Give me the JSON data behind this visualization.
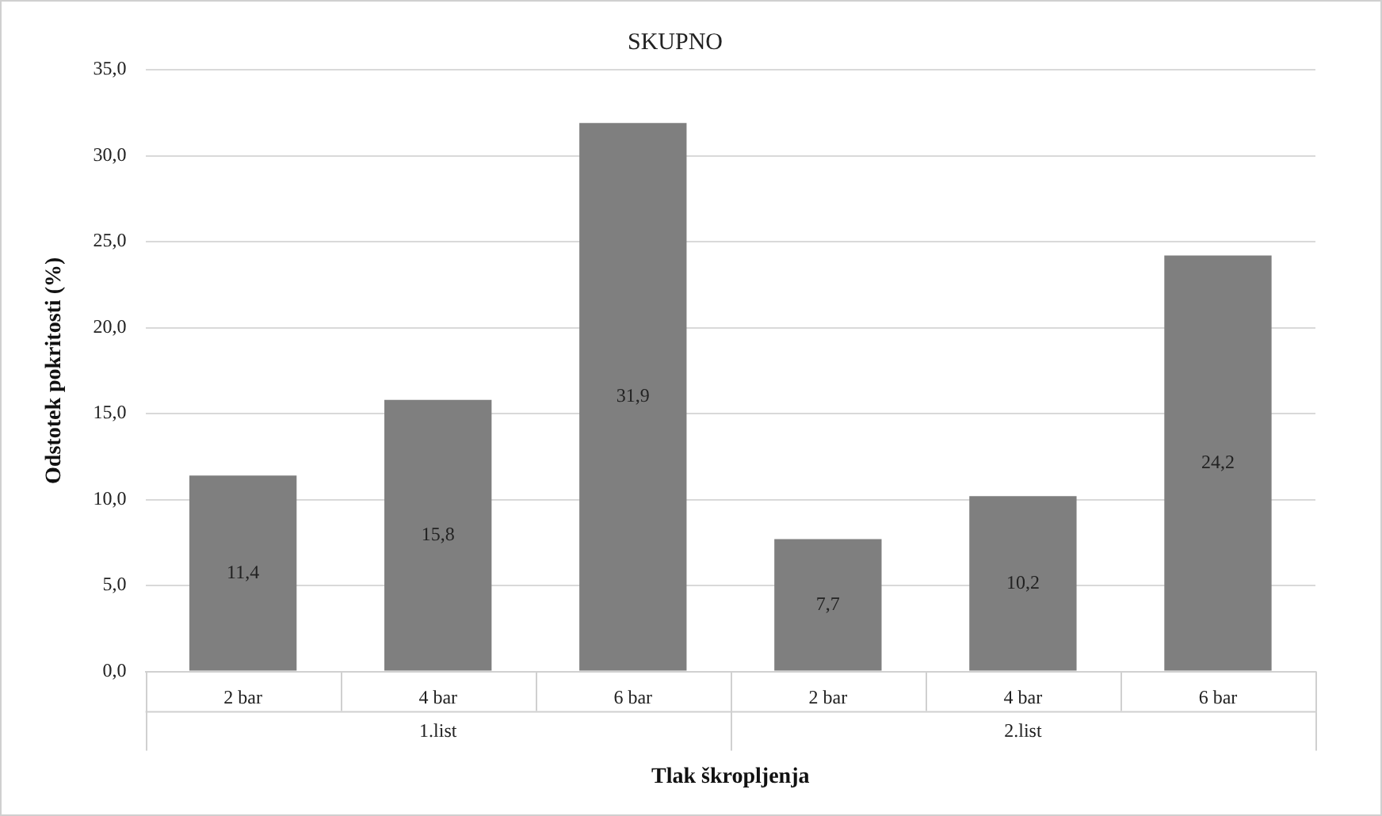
{
  "chart_data": {
    "type": "bar",
    "title": "SKUPNO",
    "xlabel": "Tlak škropljenja",
    "ylabel": "Odstotek pokritosti (%)",
    "categories": [
      "2 bar",
      "4 bar",
      "6 bar",
      "2 bar",
      "4 bar",
      "6 bar"
    ],
    "values": [
      11.4,
      15.8,
      31.9,
      7.7,
      10.2,
      24.2
    ],
    "color": "#7f7f7f",
    "ylim": [
      0,
      35
    ],
    "yticks": [
      {
        "value": 0,
        "label": "0,0"
      },
      {
        "value": 5,
        "label": "5,0"
      },
      {
        "value": 10,
        "label": "10,0"
      },
      {
        "value": 15,
        "label": "15,0"
      },
      {
        "value": 20,
        "label": "20,0"
      },
      {
        "value": 25,
        "label": "25,0"
      },
      {
        "value": 30,
        "label": "30,0"
      },
      {
        "value": 35,
        "label": "35,0"
      }
    ],
    "grid": "y",
    "value_labels": [
      "11,4",
      "15,8",
      "31,9",
      "7,7",
      "10,2",
      "24,2"
    ],
    "annotations": [
      "1.list",
      "2.list"
    ]
  }
}
